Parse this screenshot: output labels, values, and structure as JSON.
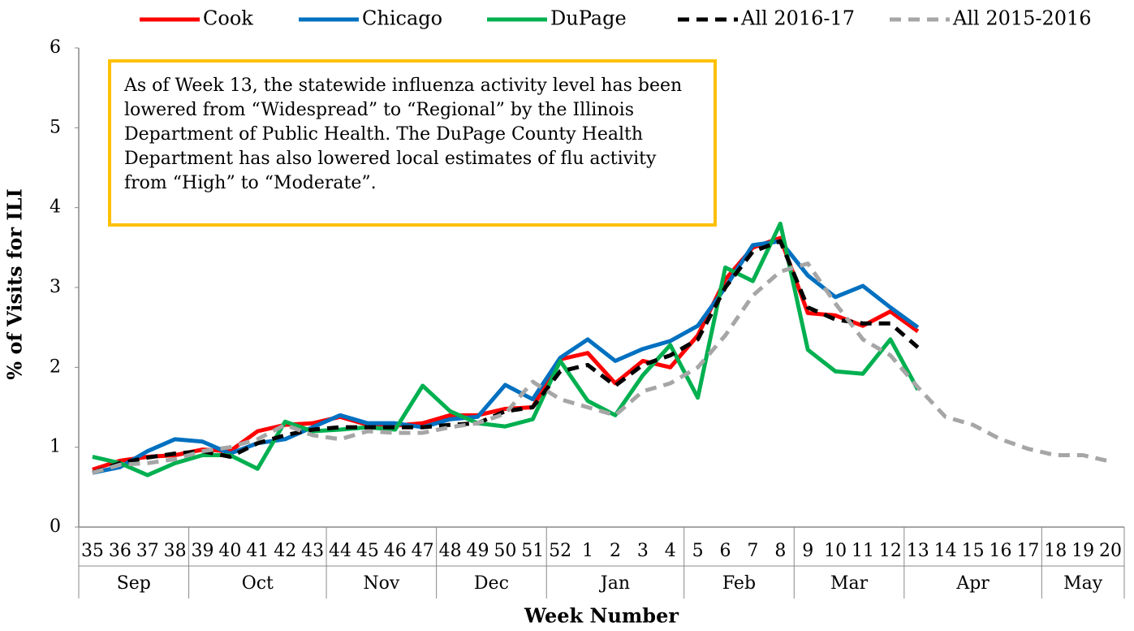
{
  "chart_data": {
    "type": "line",
    "y_label": "% of Visits for ILI",
    "x_label": "Week Number",
    "annotation": "As of Week 13, the statewide influenza activity level has been lowered from “Widespread” to “Regional” by the Illinois Department of Public Health. The DuPage County Health Department has also lowered local estimates of flu activity from “High” to “Moderate”.",
    "categories": [
      "35",
      "36",
      "37",
      "38",
      "39",
      "40",
      "41",
      "42",
      "43",
      "44",
      "45",
      "46",
      "47",
      "48",
      "49",
      "50",
      "51",
      "52",
      "1",
      "2",
      "3",
      "4",
      "5",
      "6",
      "7",
      "8",
      "9",
      "10",
      "11",
      "12",
      "13",
      "14",
      "15",
      "16",
      "17",
      "18",
      "19",
      "20"
    ],
    "groups": [
      {
        "label": "Sep",
        "span": 4
      },
      {
        "label": "Oct",
        "span": 5
      },
      {
        "label": "Nov",
        "span": 4
      },
      {
        "label": "Dec",
        "span": 4
      },
      {
        "label": "Jan",
        "span": 5
      },
      {
        "label": "Feb",
        "span": 4
      },
      {
        "label": "Mar",
        "span": 4
      },
      {
        "label": "Apr",
        "span": 5
      },
      {
        "label": "May",
        "span": 3
      }
    ],
    "ylim": [
      0,
      6
    ],
    "yticks": [
      0,
      1,
      2,
      3,
      4,
      5,
      6
    ],
    "grid": false,
    "legend": "top",
    "series": [
      {
        "name": "Cook",
        "color": "#ff0000",
        "style": "solid",
        "values": [
          0.72,
          0.83,
          0.88,
          0.9,
          0.97,
          0.95,
          1.2,
          1.28,
          1.3,
          1.38,
          1.28,
          1.27,
          1.3,
          1.4,
          1.4,
          1.48,
          1.5,
          2.1,
          2.18,
          1.8,
          2.08,
          2.0,
          2.4,
          3.1,
          3.5,
          3.62,
          2.68,
          2.65,
          2.52,
          2.7,
          2.45,
          null,
          null,
          null,
          null,
          null,
          null,
          null
        ]
      },
      {
        "name": "Chicago",
        "color": "#0070c0",
        "style": "solid",
        "values": [
          0.68,
          0.75,
          0.95,
          1.1,
          1.07,
          0.92,
          1.05,
          1.1,
          1.25,
          1.4,
          1.3,
          1.3,
          1.25,
          1.35,
          1.38,
          1.78,
          1.6,
          2.12,
          2.35,
          2.08,
          2.23,
          2.33,
          2.52,
          3.0,
          3.53,
          3.58,
          3.15,
          2.88,
          3.02,
          2.75,
          2.5,
          null,
          null,
          null,
          null,
          null,
          null,
          null
        ]
      },
      {
        "name": "DuPage",
        "color": "#00b050",
        "style": "solid",
        "values": [
          0.88,
          0.8,
          0.65,
          0.8,
          0.9,
          0.9,
          0.73,
          1.32,
          1.2,
          1.22,
          1.25,
          1.22,
          1.77,
          1.45,
          1.3,
          1.26,
          1.35,
          2.08,
          1.58,
          1.4,
          1.9,
          2.28,
          1.62,
          3.25,
          3.08,
          3.8,
          2.22,
          1.95,
          1.92,
          2.35,
          1.72,
          null,
          null,
          null,
          null,
          null,
          null,
          null
        ]
      },
      {
        "name": "All 2016-17",
        "color": "#000000",
        "style": "dashed",
        "values": [
          0.68,
          0.8,
          0.87,
          0.92,
          0.95,
          0.88,
          1.05,
          1.15,
          1.22,
          1.25,
          1.25,
          1.25,
          1.25,
          1.28,
          1.3,
          1.45,
          1.5,
          1.95,
          2.03,
          1.77,
          2.03,
          2.15,
          2.35,
          3.0,
          3.45,
          3.58,
          2.75,
          2.6,
          2.55,
          2.55,
          2.25,
          null,
          null,
          null,
          null,
          null,
          null,
          null
        ]
      },
      {
        "name": "All 2015-2016",
        "color": "#a6a6a6",
        "style": "dashed",
        "values": [
          0.68,
          0.78,
          0.8,
          0.85,
          0.95,
          1.0,
          1.1,
          1.28,
          1.15,
          1.1,
          1.2,
          1.18,
          1.18,
          1.25,
          1.3,
          1.42,
          1.82,
          1.6,
          1.5,
          1.4,
          1.7,
          1.8,
          2.0,
          2.4,
          2.9,
          3.2,
          3.3,
          2.8,
          2.35,
          2.15,
          1.75,
          1.38,
          1.28,
          1.1,
          0.98,
          0.9,
          0.9,
          0.82
        ]
      }
    ]
  }
}
